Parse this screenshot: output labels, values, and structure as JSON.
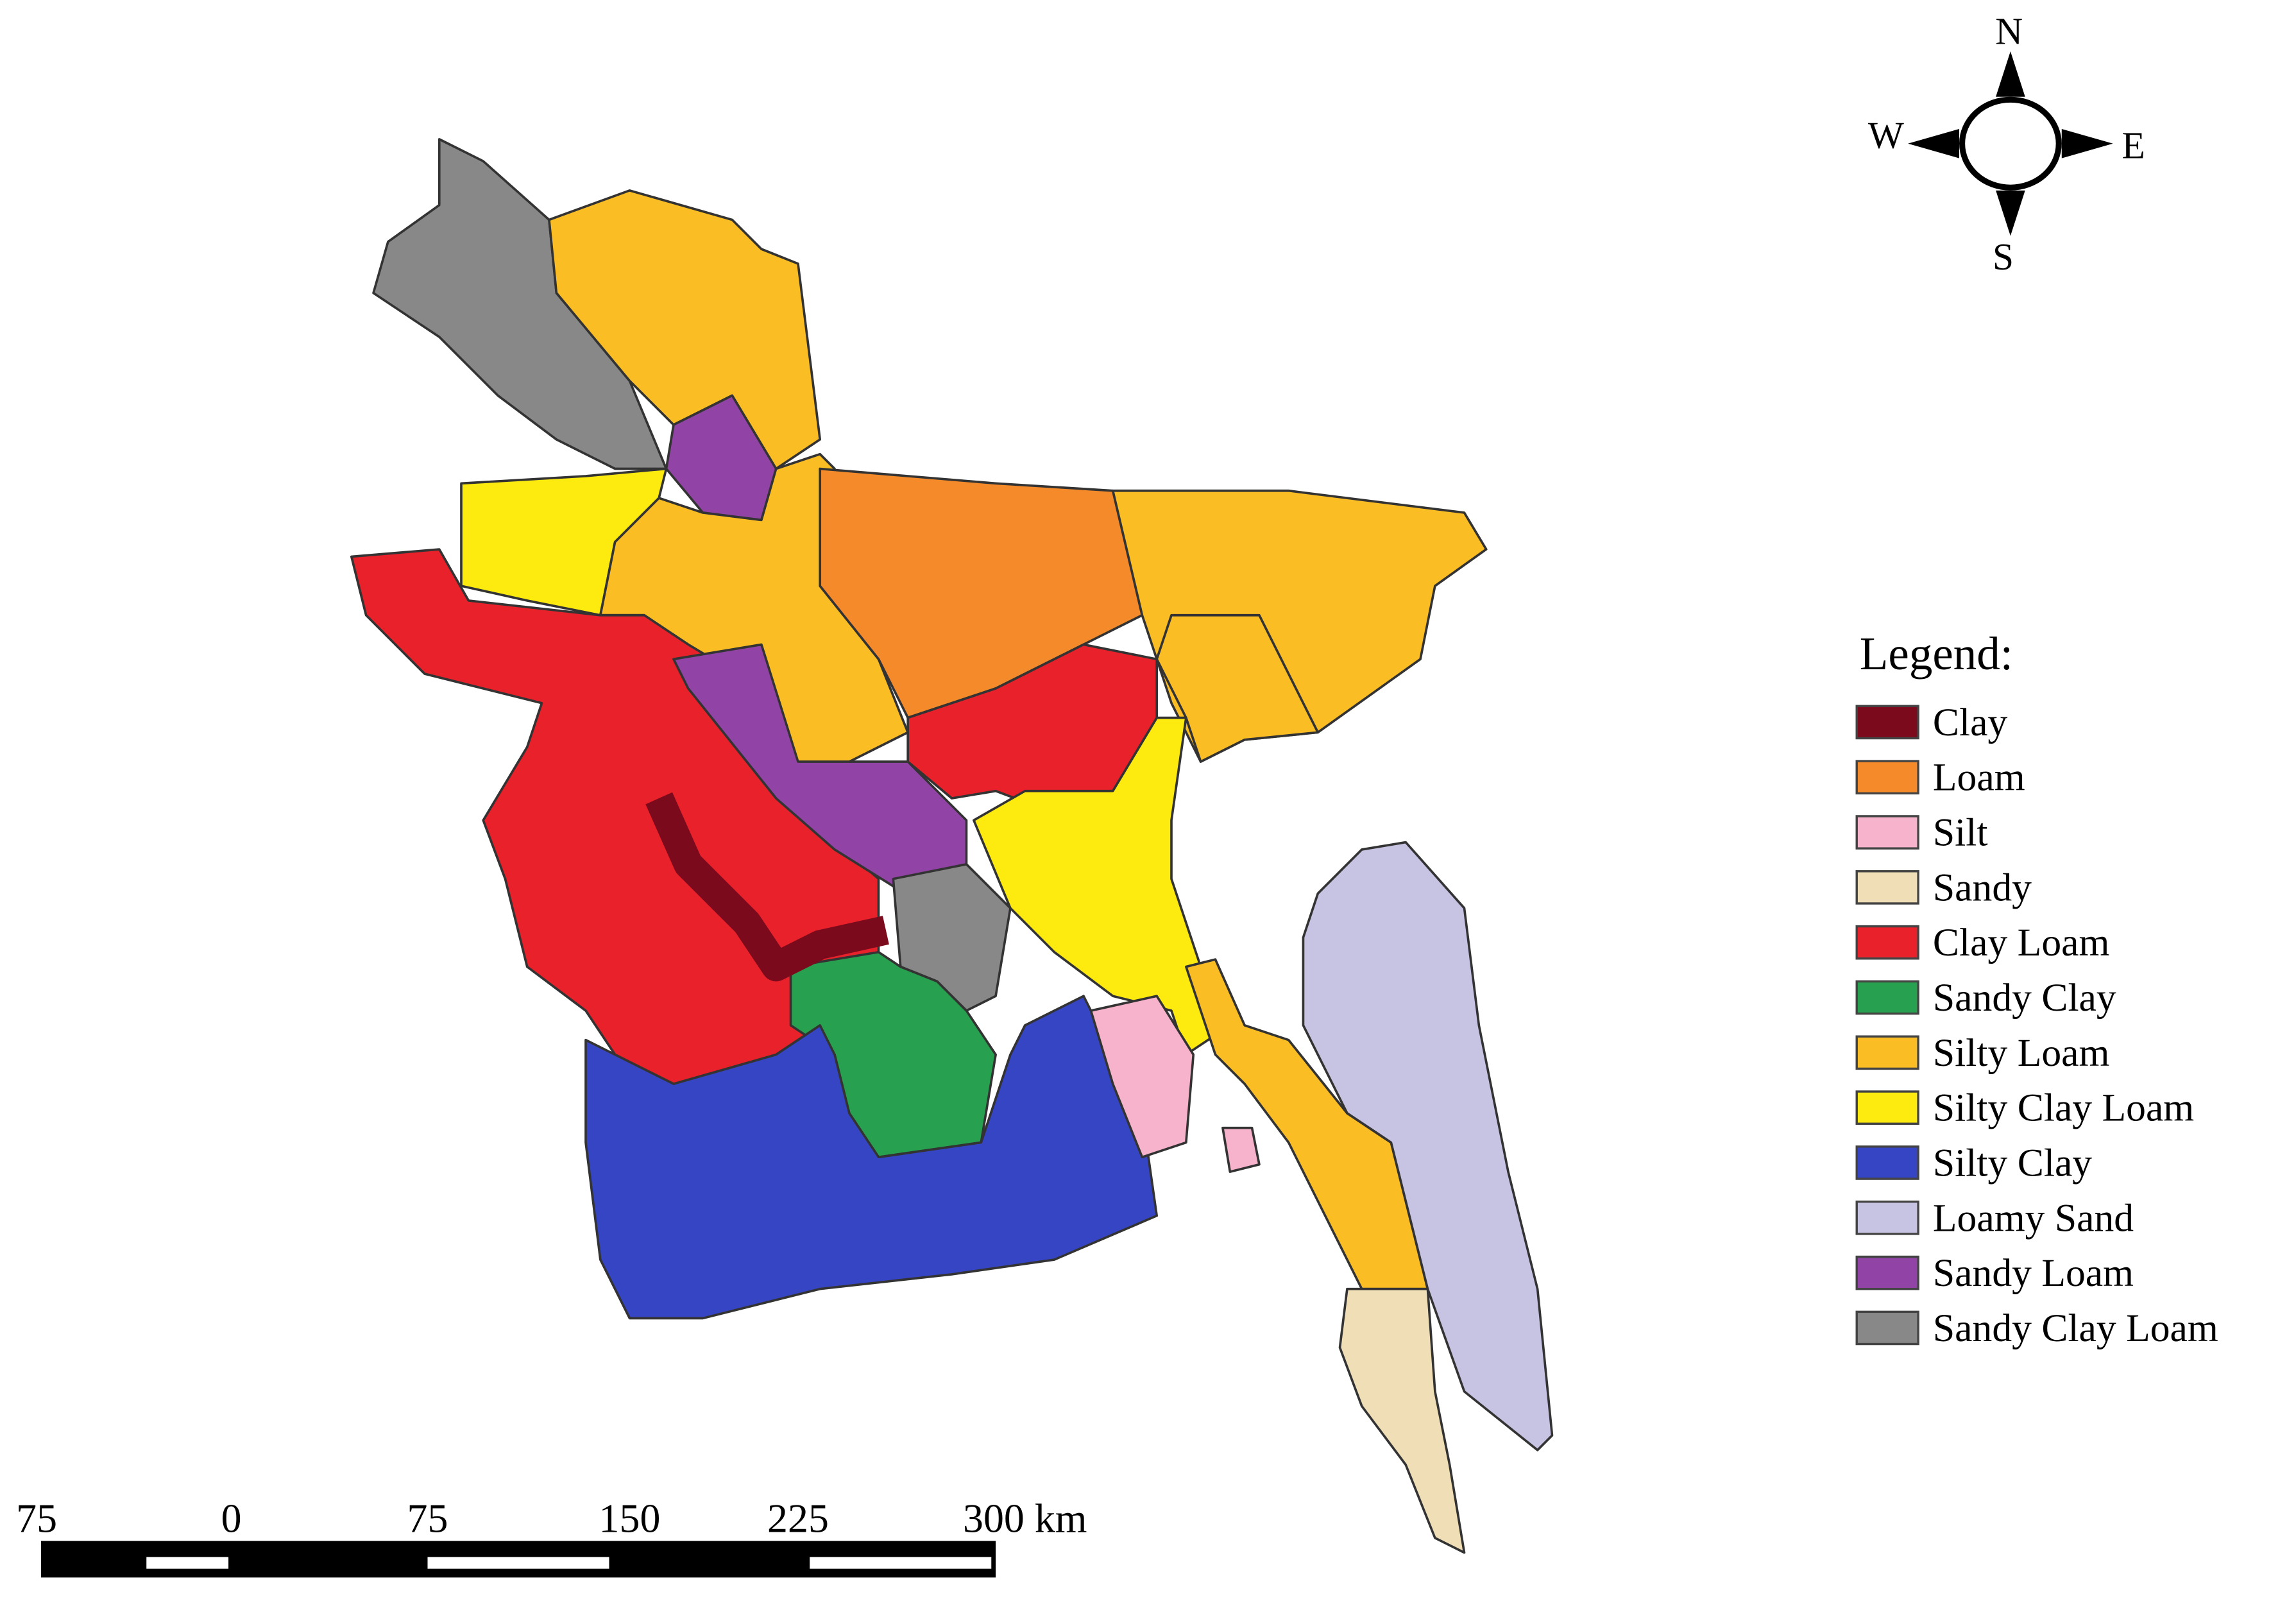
{
  "compass": {
    "north": "N",
    "south": "S",
    "east": "E",
    "west": "W"
  },
  "legend": {
    "title": "Legend:",
    "items": [
      {
        "label": "Clay",
        "color": "#7a0a1c"
      },
      {
        "label": "Loam",
        "color": "#f58a2a"
      },
      {
        "label": "Silt",
        "color": "#f6b3cb"
      },
      {
        "label": "Sandy",
        "color": "#f0dfb6"
      },
      {
        "label": "Clay Loam",
        "color": "#e8212b"
      },
      {
        "label": "Sandy Clay",
        "color": "#27a150"
      },
      {
        "label": "Silty Loam",
        "color": "#fbbd24"
      },
      {
        "label": "Silty Clay Loam",
        "color": "#fdea0e"
      },
      {
        "label": "Silty Clay",
        "color": "#3545c4"
      },
      {
        "label": "Loamy Sand",
        "color": "#c7c3e3"
      },
      {
        "label": "Sandy Loam",
        "color": "#9244a6"
      },
      {
        "label": "Sandy Clay Loam",
        "color": "#888888"
      }
    ]
  },
  "scale_bar": {
    "labels": [
      "75",
      "0",
      "75",
      "150",
      "225",
      "300 km"
    ]
  }
}
